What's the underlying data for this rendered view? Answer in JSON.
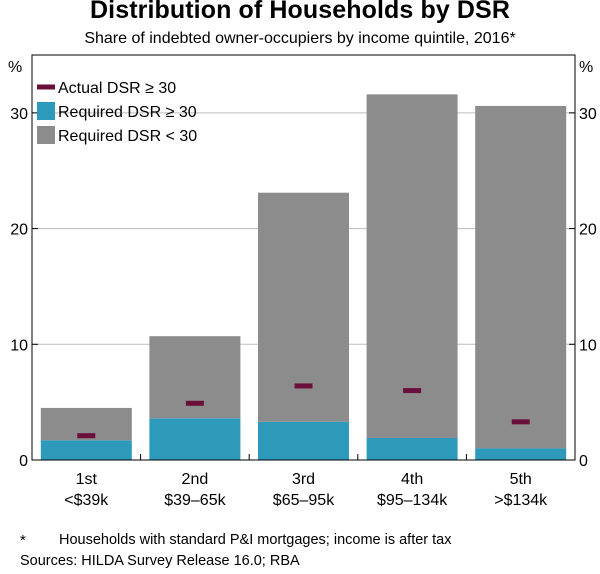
{
  "header": {
    "title": "Distribution of Households by DSR",
    "subtitle": "Share of indebted owner-occupiers by income quintile, 2016*"
  },
  "footnotes": {
    "marker": "*",
    "note": "Households with standard P&I mortgages; income is after tax",
    "sources": "Sources: HILDA Survey Release 16.0; RBA"
  },
  "colors": {
    "required_ge_30": "#2e9abb",
    "required_lt_30": "#8c8c8c",
    "actual_ge_30": "#6a0f3a"
  },
  "chart_data": {
    "type": "bar",
    "stacked": true,
    "title": "Distribution of Households by DSR",
    "subtitle": "Share of indebted owner-occupiers by income quintile, 2016*",
    "ylabel_left": "%",
    "ylabel_right": "%",
    "ylim": [
      0,
      35
    ],
    "yticks": [
      0,
      10,
      20,
      30
    ],
    "grid": true,
    "legend_position": "top-left",
    "categories": [
      [
        "1st",
        "<$39k"
      ],
      [
        "2nd",
        "$39–65k"
      ],
      [
        "3rd",
        "$65–95k"
      ],
      [
        "4th",
        "$95–134k"
      ],
      [
        "5th",
        ">$134k"
      ]
    ],
    "series": [
      {
        "name": "Required DSR ≥ 30",
        "kind": "bar",
        "color": "#2e9abb",
        "values": [
          1.7,
          3.6,
          3.3,
          1.9,
          1.0
        ]
      },
      {
        "name": "Required DSR < 30",
        "kind": "bar",
        "color": "#8c8c8c",
        "values": [
          2.8,
          7.1,
          19.8,
          29.7,
          29.6
        ]
      },
      {
        "name": "Actual DSR ≥ 30",
        "kind": "marker",
        "color": "#6a0f3a",
        "values": [
          2.1,
          4.9,
          6.4,
          6.0,
          3.3
        ]
      }
    ],
    "legend": [
      "Actual DSR ≥ 30",
      "Required DSR ≥ 30",
      "Required DSR < 30"
    ]
  }
}
